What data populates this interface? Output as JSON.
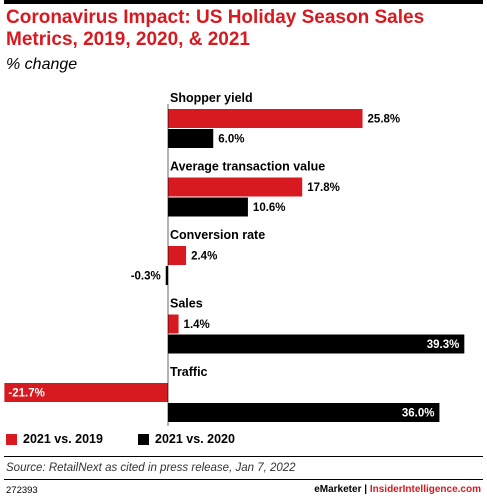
{
  "header": {
    "title": "Coronavirus Impact: US Holiday Season Sales Metrics, 2019, 2020, & 2021",
    "subtitle": "% change"
  },
  "colors": {
    "series_2021_vs_2019": "#d71920",
    "series_2021_vs_2020": "#000000"
  },
  "chart_data": {
    "type": "bar",
    "orientation": "horizontal",
    "title": "Coronavirus Impact: US Holiday Season Sales Metrics, 2019, 2020, & 2021",
    "subtitle": "% change",
    "categories": [
      "Shopper yield",
      "Average transaction value",
      "Conversion rate",
      "Sales",
      "Traffic"
    ],
    "series": [
      {
        "name": "2021 vs. 2019",
        "values": [
          25.8,
          17.8,
          2.4,
          1.4,
          -21.7
        ],
        "labels": [
          "25.8%",
          "17.8%",
          "2.4%",
          "1.4%",
          "-21.7%"
        ]
      },
      {
        "name": "2021 vs. 2020",
        "values": [
          6.0,
          10.6,
          -0.3,
          39.3,
          36.0
        ],
        "labels": [
          "6.0%",
          "10.6%",
          "-0.3%",
          "39.3%",
          "36.0%"
        ]
      }
    ],
    "legend": "bottom"
  },
  "legend": {
    "items": [
      "2021 vs. 2019",
      "2021 vs. 2020"
    ]
  },
  "footer": {
    "source": "Source: RetailNext as cited in press release, Jan 7, 2022",
    "chart_id": "272393",
    "brand_1": "eMarketer",
    "separator": "|",
    "brand_2": "InsiderIntelligence.com"
  }
}
